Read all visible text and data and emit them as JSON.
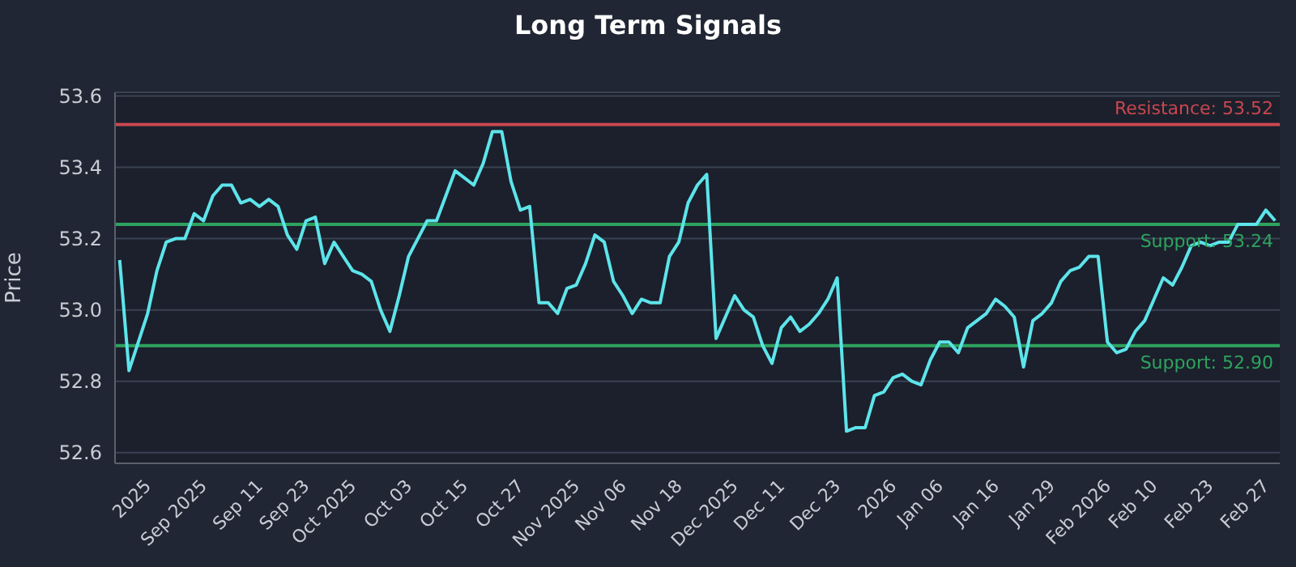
{
  "chart_data": {
    "type": "line",
    "title": "Long Term Signals",
    "ylabel": "Price",
    "categories": [
      null,
      null,
      null,
      "2025",
      null,
      null,
      null,
      null,
      null,
      "Sep 2025",
      null,
      null,
      null,
      null,
      null,
      "Sep 11",
      null,
      null,
      null,
      null,
      "Sep 23",
      null,
      null,
      null,
      null,
      "Oct 2025",
      null,
      null,
      null,
      null,
      null,
      "Oct 03",
      null,
      null,
      null,
      null,
      null,
      "Oct 15",
      null,
      null,
      null,
      null,
      null,
      "Oct 27",
      null,
      null,
      null,
      null,
      null,
      "Nov 2025",
      null,
      null,
      null,
      null,
      "Nov 06",
      null,
      null,
      null,
      null,
      null,
      "Nov 18",
      null,
      null,
      null,
      null,
      null,
      "Dec 2025",
      null,
      null,
      null,
      null,
      "Dec 11",
      null,
      null,
      null,
      null,
      null,
      "Dec 23",
      null,
      null,
      null,
      null,
      null,
      "2026",
      null,
      null,
      null,
      null,
      "Jan 06",
      null,
      null,
      null,
      null,
      null,
      "Jan 16",
      null,
      null,
      null,
      null,
      null,
      "Jan 29",
      null,
      null,
      null,
      null,
      null,
      "Feb 2026",
      null,
      null,
      null,
      null,
      "Feb 10",
      null,
      null,
      null,
      null,
      null,
      "Feb 23",
      null,
      null,
      null,
      null,
      null,
      "Feb 27",
      null
    ],
    "series": [
      {
        "color": "#5de4ea",
        "values": [
          53.14,
          52.83,
          52.91,
          52.99,
          53.11,
          53.19,
          53.2,
          53.2,
          53.27,
          53.25,
          53.32,
          53.35,
          53.35,
          53.3,
          53.31,
          53.29,
          53.31,
          53.29,
          53.21,
          53.17,
          53.25,
          53.26,
          53.13,
          53.19,
          53.15,
          53.11,
          53.1,
          53.08,
          53.0,
          52.94,
          53.04,
          53.15,
          53.2,
          53.25,
          53.25,
          53.32,
          53.39,
          53.37,
          53.35,
          53.41,
          53.5,
          53.5,
          53.36,
          53.28,
          53.29,
          53.02,
          53.02,
          52.99,
          53.06,
          53.07,
          53.13,
          53.21,
          53.19,
          53.08,
          53.04,
          52.99,
          53.03,
          53.02,
          53.02,
          53.15,
          53.19,
          53.3,
          53.35,
          53.38,
          52.92,
          52.98,
          53.04,
          53.0,
          52.98,
          52.9,
          52.85,
          52.95,
          52.98,
          52.94,
          52.96,
          52.99,
          53.03,
          53.09,
          52.66,
          52.67,
          52.67,
          52.76,
          52.77,
          52.81,
          52.82,
          52.8,
          52.79,
          52.86,
          52.91,
          52.91,
          52.88,
          52.95,
          52.97,
          52.99,
          53.03,
          53.01,
          52.98,
          52.84,
          52.97,
          52.99,
          53.02,
          53.08,
          53.11,
          53.12,
          53.15,
          53.15,
          52.91,
          52.88,
          52.89,
          52.94,
          52.97,
          53.03,
          53.09,
          53.07,
          53.12,
          53.18,
          53.19,
          53.18,
          53.19,
          53.19,
          53.24,
          53.24,
          53.24,
          53.28,
          53.25
        ]
      }
    ],
    "ylim": [
      52.57,
      53.61
    ],
    "yticks": [
      52.6,
      52.8,
      {
        "value": 53,
        "label": "53.0"
      },
      53.2,
      53.4,
      53.6
    ],
    "grid": "y",
    "ref_lines": [
      {
        "axis": "y",
        "value": 53.52,
        "label": "Resistance: 53.52",
        "color": "#c9474f"
      },
      {
        "axis": "y",
        "value": 53.24,
        "label": "Support: 53.24",
        "color": "#2ea35f"
      },
      {
        "axis": "y",
        "value": 52.9,
        "label": "Support: 52.90",
        "color": "#2ea35f"
      }
    ]
  }
}
